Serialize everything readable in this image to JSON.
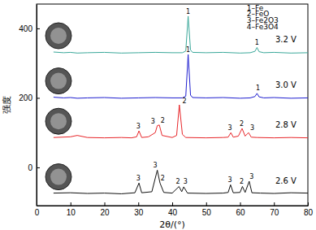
{
  "chart_data": {
    "type": "line",
    "x_label": "2θ/(°)",
    "y_label": "强度",
    "xlim": [
      0,
      80
    ],
    "xticks": [
      0,
      10,
      20,
      30,
      40,
      50,
      60,
      70,
      80
    ],
    "ylim": [
      -110,
      470
    ],
    "yticks": [
      0,
      200,
      400
    ],
    "series": [
      {
        "name": "3.2 V",
        "color": "#3aa89a",
        "x": [
          5,
          8,
          10,
          12,
          15,
          20,
          25,
          30,
          35,
          40,
          43,
          44,
          44.7,
          45.4,
          46,
          50,
          55,
          60,
          63,
          64.4,
          65,
          65.6,
          67,
          70,
          75,
          80
        ],
        "values": [
          332,
          330,
          331,
          329,
          330,
          331,
          329,
          330,
          331,
          330,
          330,
          335,
          435,
          338,
          331,
          330,
          331,
          329,
          330,
          334,
          345,
          333,
          330,
          331,
          329,
          330
        ]
      },
      {
        "name": "3.0 V",
        "color": "#1f1fd0",
        "x": [
          5,
          8,
          10,
          12,
          15,
          20,
          25,
          30,
          35,
          40,
          43,
          44,
          44.7,
          45.4,
          46,
          50,
          55,
          60,
          63,
          64.4,
          65,
          65.6,
          67,
          70,
          75,
          80
        ],
        "values": [
          202,
          200,
          201,
          199,
          200,
          201,
          199,
          200,
          201,
          200,
          200,
          205,
          325,
          208,
          201,
          200,
          201,
          199,
          200,
          204,
          213,
          203,
          200,
          201,
          199,
          200
        ]
      },
      {
        "name": "2.8 V",
        "color": "#e8262a",
        "x": [
          5,
          10,
          12,
          15,
          20,
          25,
          28,
          29.5,
          30.2,
          31,
          33,
          35,
          35.6,
          36.2,
          37,
          40,
          41.3,
          42.1,
          43,
          44,
          50,
          55,
          56.5,
          57.3,
          58,
          59.5,
          60.6,
          61.5,
          62.5,
          63.3,
          65,
          70,
          75,
          80
        ],
        "values": [
          86,
          88,
          92,
          86,
          85,
          86,
          85,
          88,
          105,
          86,
          88,
          100,
          120,
          122,
          92,
          86,
          92,
          180,
          95,
          86,
          85,
          86,
          87,
          100,
          87,
          90,
          112,
          90,
          100,
          87,
          86,
          85,
          86,
          85
        ]
      },
      {
        "name": "2.6 V",
        "color": "#111111",
        "x": [
          5,
          10,
          15,
          20,
          25,
          29,
          30.2,
          31,
          34,
          35.6,
          36.4,
          37.5,
          40,
          42,
          42.8,
          43.4,
          44.5,
          50,
          55,
          56.5,
          57.2,
          58,
          60,
          60.7,
          61.5,
          62.7,
          63.5,
          66,
          70,
          75,
          80
        ],
        "values": [
          -74,
          -73,
          -75,
          -74,
          -76,
          -73,
          -45,
          -73,
          -70,
          -8,
          -45,
          -72,
          -74,
          -55,
          -70,
          -56,
          -74,
          -75,
          -74,
          -72,
          -50,
          -73,
          -72,
          -55,
          -72,
          -40,
          -73,
          -74,
          -75,
          -73,
          -74
        ]
      }
    ],
    "annotations": [
      {
        "text": "1–Fe",
        "x": 62,
        "y": 452
      },
      {
        "text": "2–FeO",
        "x": 62,
        "y": 434
      },
      {
        "text": "3–Fe2O3",
        "x": 62,
        "y": 416
      },
      {
        "text": "4–Fe3O4",
        "x": 62,
        "y": 398
      },
      {
        "text": "1",
        "x": 44.7,
        "y": 443
      },
      {
        "text": "1",
        "x": 65,
        "y": 352
      },
      {
        "text": "1",
        "x": 44.7,
        "y": 333
      },
      {
        "text": "1",
        "x": 65.3,
        "y": 221
      },
      {
        "text": "3",
        "x": 30,
        "y": 112
      },
      {
        "text": "3",
        "x": 34.3,
        "y": 127
      },
      {
        "text": "2",
        "x": 37.2,
        "y": 129
      },
      {
        "text": "2",
        "x": 43.6,
        "y": 184
      },
      {
        "text": "3",
        "x": 57,
        "y": 107
      },
      {
        "text": "2",
        "x": 60.5,
        "y": 119
      },
      {
        "text": "3",
        "x": 63.6,
        "y": 107
      },
      {
        "text": "3",
        "x": 30,
        "y": -37
      },
      {
        "text": "3",
        "x": 35,
        "y": 1
      },
      {
        "text": "2",
        "x": 37.2,
        "y": -37
      },
      {
        "text": "2",
        "x": 41.7,
        "y": -47
      },
      {
        "text": "3",
        "x": 43.9,
        "y": -47
      },
      {
        "text": "3",
        "x": 57,
        "y": -42
      },
      {
        "text": "2",
        "x": 60.5,
        "y": -47
      },
      {
        "text": "3",
        "x": 63.4,
        "y": -32
      }
    ]
  }
}
